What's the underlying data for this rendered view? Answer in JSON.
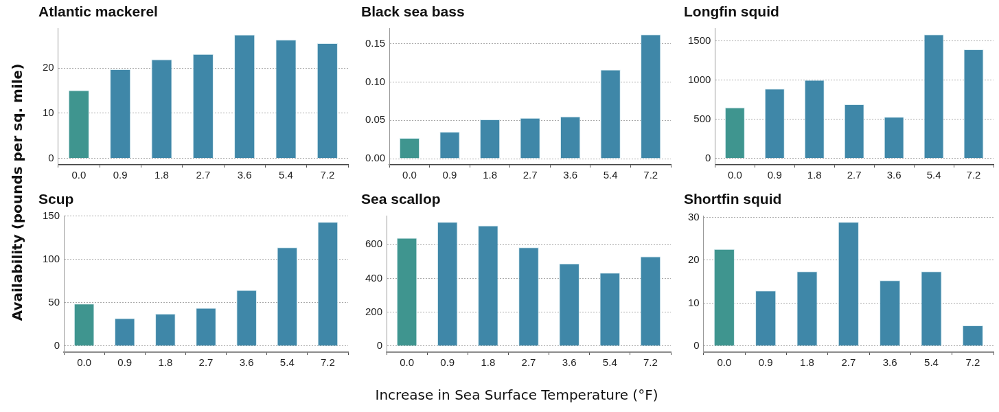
{
  "chart_data": [
    {
      "type": "bar",
      "title": "Atlantic mackerel",
      "ylabel": "Availability (pounds per sq. mile)",
      "categories": [
        "0.0",
        "0.9",
        "1.8",
        "2.7",
        "3.6",
        "5.4",
        "7.2"
      ],
      "values": [
        15.1,
        19.7,
        21.9,
        23.1,
        27.4,
        26.3,
        25.5
      ],
      "colors": [
        "#3f958f",
        "#3f87a8",
        "#3f87a8",
        "#3f87a8",
        "#3f87a8",
        "#3f87a8",
        "#3f87a8"
      ],
      "ylim": [
        -1.4,
        28.8
      ],
      "yticks": [
        0,
        10,
        20
      ],
      "grid": "y"
    },
    {
      "type": "bar",
      "title": "Black sea bass",
      "categories": [
        "0.0",
        "0.9",
        "1.8",
        "2.7",
        "3.6",
        "5.4",
        "7.2"
      ],
      "values": [
        0.027,
        0.035,
        0.051,
        0.053,
        0.055,
        0.116,
        0.162
      ],
      "colors": [
        "#3f958f",
        "#3f87a8",
        "#3f87a8",
        "#3f87a8",
        "#3f87a8",
        "#3f87a8",
        "#3f87a8"
      ],
      "ylim": [
        -0.008,
        0.17
      ],
      "yticks": [
        {
          "value": 0,
          "label": "0.00"
        },
        0.05,
        {
          "value": 0.1,
          "label": "0.10"
        },
        0.15
      ],
      "grid": "y"
    },
    {
      "type": "bar",
      "title": "Longfin squid",
      "categories": [
        "0.0",
        "0.9",
        "1.8",
        "2.7",
        "3.6",
        "5.4",
        "7.2"
      ],
      "values": [
        650,
        890,
        1000,
        690,
        530,
        1580,
        1390
      ],
      "colors": [
        "#3f958f",
        "#3f87a8",
        "#3f87a8",
        "#3f87a8",
        "#3f87a8",
        "#3f87a8",
        "#3f87a8"
      ],
      "ylim": [
        -80,
        1660
      ],
      "yticks": [
        0,
        500,
        1000,
        1500
      ],
      "grid": "y"
    },
    {
      "type": "bar",
      "title": "Scup",
      "categories": [
        "0.0",
        "0.9",
        "1.8",
        "2.7",
        "3.6",
        "5.4",
        "7.2"
      ],
      "values": [
        48.9,
        32.1,
        37.2,
        44,
        64.6,
        114,
        143.3
      ],
      "colors": [
        "#3f958f",
        "#3f87a8",
        "#3f87a8",
        "#3f87a8",
        "#3f87a8",
        "#3f87a8",
        "#3f87a8"
      ],
      "ylim": [
        -7.2,
        150.5
      ],
      "yticks": [
        0,
        50,
        100,
        150
      ],
      "grid": "y"
    },
    {
      "type": "bar",
      "title": "Sea scallop",
      "xlabel": "Increase in Sea Surface Temperature (°F)",
      "categories": [
        "0.0",
        "0.9",
        "1.8",
        "2.7",
        "3.6",
        "5.4",
        "7.2"
      ],
      "values": [
        640,
        734,
        713,
        584,
        487,
        433,
        530
      ],
      "colors": [
        "#3f958f",
        "#3f87a8",
        "#3f87a8",
        "#3f87a8",
        "#3f87a8",
        "#3f87a8",
        "#3f87a8"
      ],
      "ylim": [
        -37,
        771
      ],
      "yticks": [
        0,
        200,
        400,
        600
      ],
      "grid": "y"
    },
    {
      "type": "bar",
      "title": "Shortfin squid",
      "categories": [
        "0.0",
        "0.9",
        "1.8",
        "2.7",
        "3.6",
        "5.4",
        "7.2"
      ],
      "values": [
        22.6,
        12.9,
        17.4,
        28.9,
        15.3,
        17.4,
        4.8
      ],
      "colors": [
        "#3f958f",
        "#3f87a8",
        "#3f87a8",
        "#3f87a8",
        "#3f87a8",
        "#3f87a8",
        "#3f87a8"
      ],
      "ylim": [
        -1.45,
        30.35
      ],
      "yticks": [
        0,
        10,
        20,
        30
      ],
      "grid": "y"
    }
  ]
}
